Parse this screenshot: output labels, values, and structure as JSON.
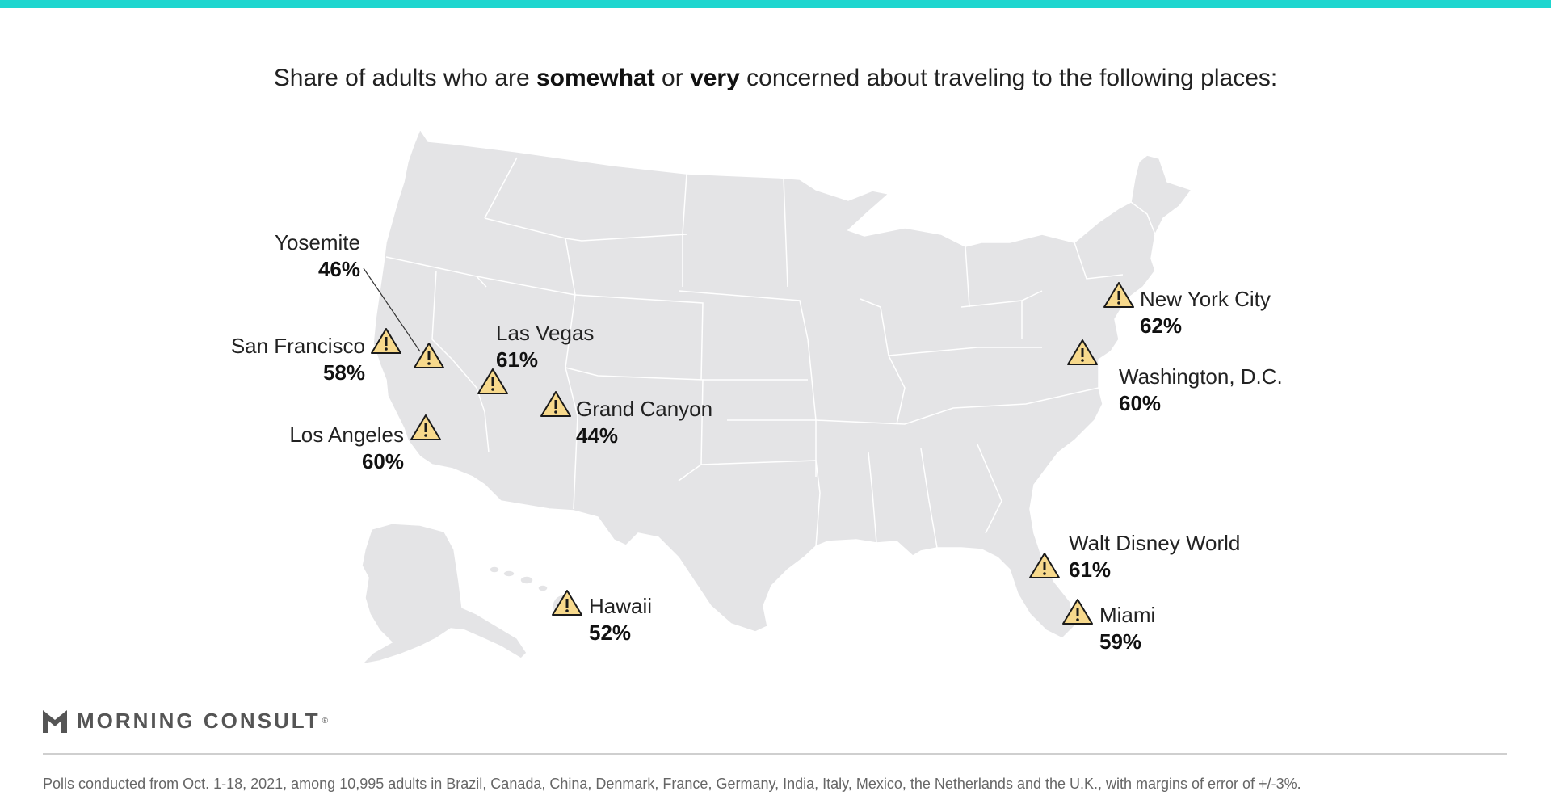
{
  "colors": {
    "accent": "#1ed6cf",
    "map_fill": "#e4e4e6",
    "map_border": "#ffffff",
    "warning_fill": "#f7d98c",
    "warning_stroke": "#1a1a1a"
  },
  "title": {
    "prefix": "Share of adults who are ",
    "bold1": "somewhat",
    "middle": " or ",
    "bold2": "very",
    "suffix": " concerned about traveling to the following places:"
  },
  "places": [
    {
      "name": "Yosemite",
      "value": "46%",
      "icon": "warning-icon"
    },
    {
      "name": "San Francisco",
      "value": "58%",
      "icon": "warning-icon"
    },
    {
      "name": "Los Angeles",
      "value": "60%",
      "icon": "warning-icon"
    },
    {
      "name": "Las Vegas",
      "value": "61%",
      "icon": "warning-icon"
    },
    {
      "name": "Grand Canyon",
      "value": "44%",
      "icon": "warning-icon"
    },
    {
      "name": "Hawaii",
      "value": "52%",
      "icon": "warning-icon"
    },
    {
      "name": "New York City",
      "value": "62%",
      "icon": "warning-icon"
    },
    {
      "name": "Washington, D.C.",
      "value": "60%",
      "icon": "warning-icon"
    },
    {
      "name": "Walt Disney World",
      "value": "61%",
      "icon": "warning-icon"
    },
    {
      "name": "Miami",
      "value": "59%",
      "icon": "warning-icon"
    }
  ],
  "logo": {
    "text": "MORNING CONSULT",
    "tm": "®"
  },
  "footnote": "Polls conducted from Oct. 1-18, 2021, among 10,995 adults in Brazil, Canada, China, Denmark, France, Germany, India, Italy, Mexico, the Netherlands and the U.K., with margins of error of +/-3%."
}
